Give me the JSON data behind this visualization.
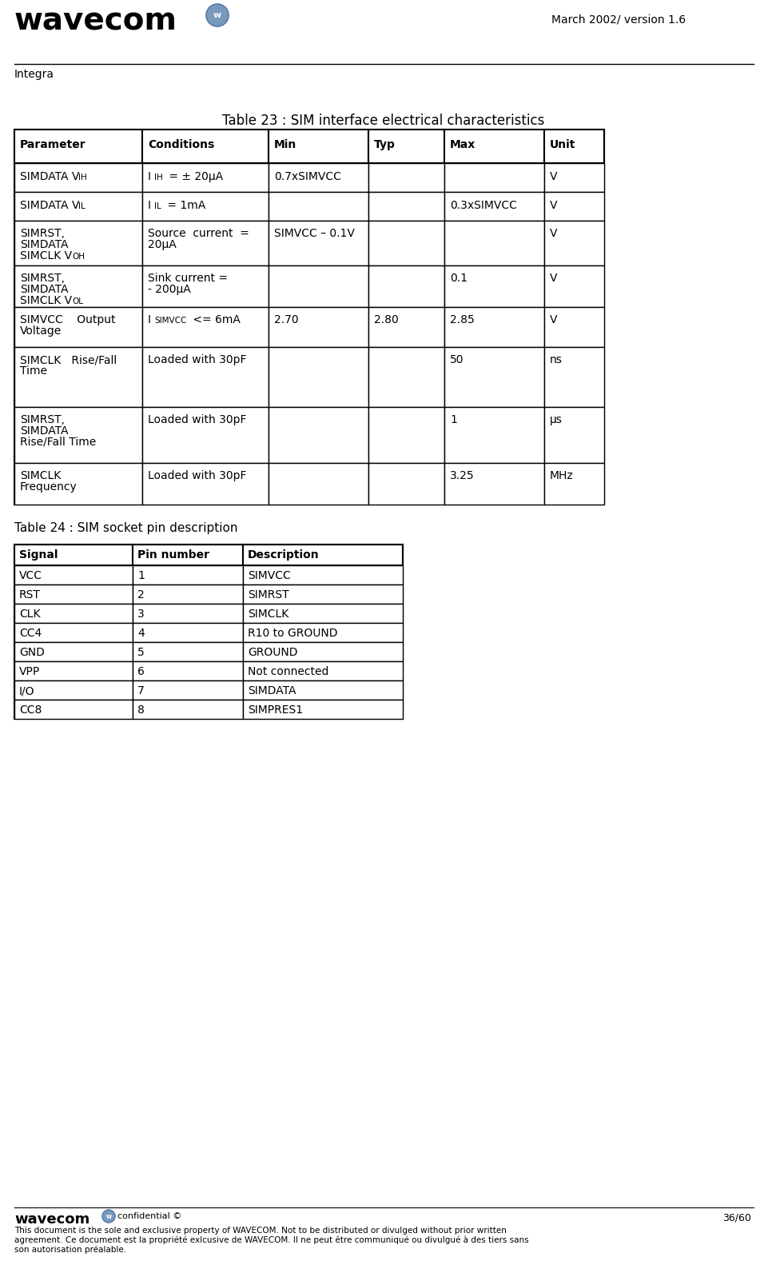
{
  "header_text": "March 2002/ version 1.6",
  "product_name": "Integra",
  "table23_title": "Table 23 : SIM interface electrical characteristics",
  "table23_headers": [
    "Parameter",
    "Conditions",
    "Min",
    "Typ",
    "Max",
    "Unit"
  ],
  "table24_title": "Table 24 : SIM socket pin description",
  "table24_headers": [
    "Signal",
    "Pin number",
    "Description"
  ],
  "table24_rows": [
    [
      "VCC",
      "1",
      "SIMVCC"
    ],
    [
      "RST",
      "2",
      "SIMRST"
    ],
    [
      "CLK",
      "3",
      "SIMCLK"
    ],
    [
      "CC4",
      "4",
      "R10 to GROUND"
    ],
    [
      "GND",
      "5",
      "GROUND"
    ],
    [
      "VPP",
      "6",
      "Not connected"
    ],
    [
      "I/O",
      "7",
      "SIMDATA"
    ],
    [
      "CC8",
      "8",
      "SIMPRES1"
    ]
  ],
  "footer_text": "confidential ©",
  "footer_page": "36/60",
  "footer_legal1": "This document is the sole and exclusive property of WAVECOM. Not to be distributed or divulged without prior written",
  "footer_legal2": "agreement. Ce document est la propriété exlcusive de WAVECOM. Il ne peut être communiqué ou divulgué à des tiers sans",
  "footer_legal3": "son autorisation préalable.",
  "bg_color": "#ffffff"
}
